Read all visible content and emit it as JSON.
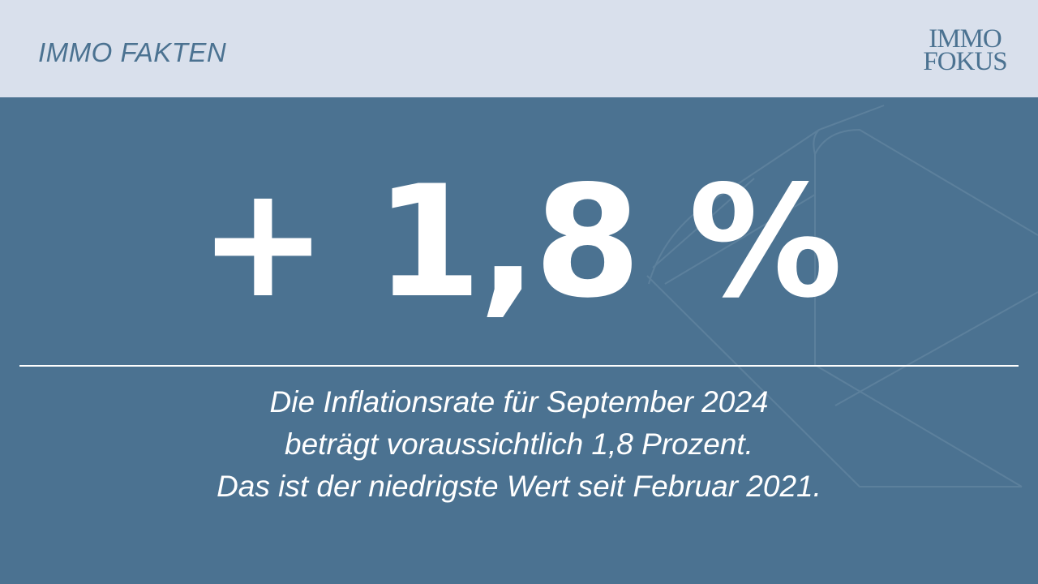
{
  "header": {
    "title": "IMMO FAKTEN",
    "logo_line1": "IMMO",
    "logo_line2": "FOKUS"
  },
  "main": {
    "value": "+ 1,8 %",
    "caption_lines": [
      "Die Inflationsrate für September 2024",
      "beträgt voraussichtlich 1,8 Prozent.",
      "Das ist der niedrigste Wert seit Februar 2021."
    ]
  },
  "colors": {
    "background": "#4b7291",
    "header_background": "#d9e0ec",
    "accent_text": "#4b7291",
    "foreground": "#ffffff"
  }
}
